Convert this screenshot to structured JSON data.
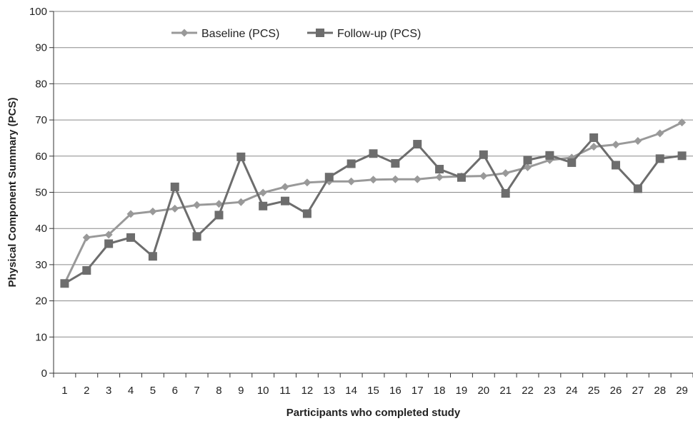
{
  "chart_data": {
    "type": "line",
    "title": "",
    "xlabel": "Participants who completed study",
    "ylabel": "Physical Component Summary (PCS)",
    "categories": [
      "1",
      "2",
      "3",
      "4",
      "5",
      "6",
      "7",
      "8",
      "9",
      "10",
      "11",
      "12",
      "13",
      "14",
      "15",
      "16",
      "17",
      "18",
      "19",
      "20",
      "21",
      "22",
      "23",
      "24",
      "25",
      "26",
      "27",
      "28",
      "29"
    ],
    "ylim": [
      0,
      100
    ],
    "yticks": [
      "0",
      "10",
      "20",
      "30",
      "40",
      "50",
      "60",
      "70",
      "80",
      "90",
      "100"
    ],
    "grid": true,
    "legend_position": "top-left",
    "series": [
      {
        "name": "Baseline (PCS)",
        "marker": "diamond",
        "color": "#999999",
        "values": [
          24.8,
          37.5,
          38.3,
          44.0,
          44.7,
          45.5,
          46.5,
          46.8,
          47.3,
          49.9,
          51.5,
          52.7,
          53.0,
          53.0,
          53.5,
          53.6,
          53.6,
          54.2,
          54.4,
          54.5,
          55.3,
          56.9,
          58.9,
          59.6,
          62.6,
          63.2,
          64.2,
          66.3,
          69.3
        ]
      },
      {
        "name": "Follow-up (PCS)",
        "marker": "square",
        "color": "#6d6d6d",
        "values": [
          24.8,
          28.4,
          35.8,
          37.5,
          32.3,
          51.5,
          37.8,
          43.7,
          59.8,
          46.2,
          47.6,
          44.1,
          54.2,
          57.9,
          60.7,
          58.0,
          63.3,
          56.4,
          54.1,
          60.4,
          49.7,
          58.9,
          60.2,
          58.2,
          65.1,
          57.5,
          51.0,
          59.3,
          60.1
        ]
      }
    ]
  }
}
